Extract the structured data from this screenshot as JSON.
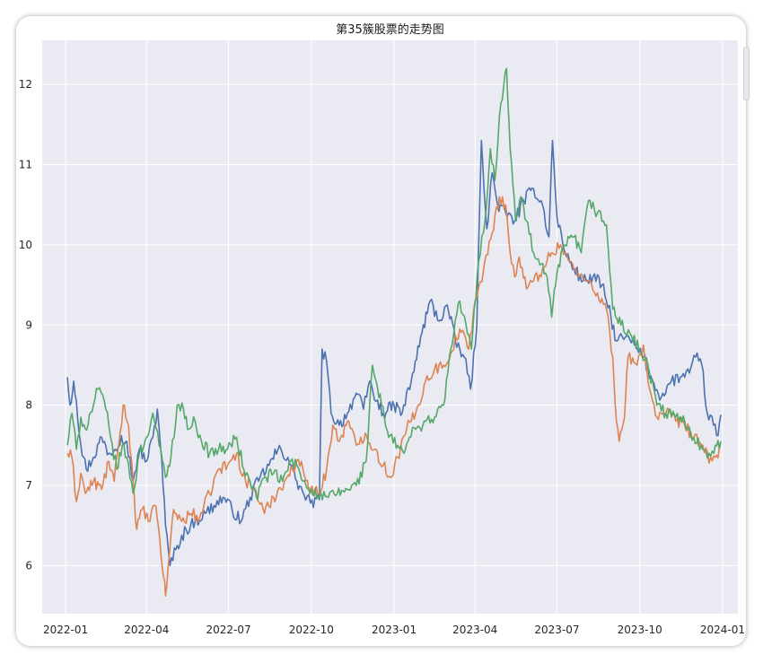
{
  "chart_data": {
    "type": "line",
    "title": "第35簇股票的走势图",
    "xlabel": "",
    "ylabel": "",
    "x_ticks": [
      "2022-01",
      "2022-04",
      "2022-07",
      "2022-10",
      "2023-01",
      "2023-04",
      "2023-07",
      "2023-10",
      "2024-01"
    ],
    "y_ticks": [
      "6",
      "7",
      "8",
      "9",
      "10",
      "11",
      "12"
    ],
    "xlim": [
      "2021-12-06",
      "2024-01-18"
    ],
    "ylim": [
      5.4,
      12.55
    ],
    "grid": true,
    "legend": "none",
    "colors": [
      "#4c72b0",
      "#dd8452",
      "#55a868"
    ],
    "series": [
      {
        "color": "#4c72b0",
        "points": [
          [
            "2022-01-03",
            8.35
          ],
          [
            "2022-01-06",
            8.0
          ],
          [
            "2022-01-10",
            8.3
          ],
          [
            "2022-01-13",
            8.05
          ],
          [
            "2022-01-18",
            7.5
          ],
          [
            "2022-01-24",
            7.2
          ],
          [
            "2022-02-01",
            7.35
          ],
          [
            "2022-02-10",
            7.6
          ],
          [
            "2022-02-18",
            7.4
          ],
          [
            "2022-02-25",
            7.45
          ],
          [
            "2022-03-04",
            7.62
          ],
          [
            "2022-03-10",
            7.55
          ],
          [
            "2022-03-17",
            7.05
          ],
          [
            "2022-03-24",
            7.45
          ],
          [
            "2022-04-01",
            7.3
          ],
          [
            "2022-04-08",
            7.6
          ],
          [
            "2022-04-13",
            7.95
          ],
          [
            "2022-04-18",
            7.3
          ],
          [
            "2022-04-22",
            6.5
          ],
          [
            "2022-04-27",
            6.0
          ],
          [
            "2022-05-05",
            6.25
          ],
          [
            "2022-05-15",
            6.45
          ],
          [
            "2022-05-25",
            6.55
          ],
          [
            "2022-06-05",
            6.65
          ],
          [
            "2022-06-15",
            6.75
          ],
          [
            "2022-06-25",
            6.85
          ],
          [
            "2022-07-05",
            6.7
          ],
          [
            "2022-07-15",
            6.55
          ],
          [
            "2022-07-25",
            6.85
          ],
          [
            "2022-08-05",
            7.1
          ],
          [
            "2022-08-15",
            7.25
          ],
          [
            "2022-08-25",
            7.45
          ],
          [
            "2022-09-05",
            7.35
          ],
          [
            "2022-09-15",
            7.05
          ],
          [
            "2022-09-23",
            6.88
          ],
          [
            "2022-09-30",
            6.78
          ],
          [
            "2022-10-10",
            6.82
          ],
          [
            "2022-10-13",
            8.7
          ],
          [
            "2022-10-18",
            8.55
          ],
          [
            "2022-10-23",
            7.9
          ],
          [
            "2022-11-01",
            7.75
          ],
          [
            "2022-11-10",
            7.9
          ],
          [
            "2022-11-20",
            8.15
          ],
          [
            "2022-11-28",
            7.95
          ],
          [
            "2022-12-05",
            8.3
          ],
          [
            "2022-12-12",
            8.05
          ],
          [
            "2022-12-20",
            7.9
          ],
          [
            "2023-01-01",
            8.0
          ],
          [
            "2023-01-10",
            7.9
          ],
          [
            "2023-01-20",
            8.3
          ],
          [
            "2023-02-01",
            8.9
          ],
          [
            "2023-02-10",
            9.3
          ],
          [
            "2023-02-20",
            9.05
          ],
          [
            "2023-03-01",
            9.25
          ],
          [
            "2023-03-10",
            8.8
          ],
          [
            "2023-03-20",
            8.6
          ],
          [
            "2023-03-27",
            8.2
          ],
          [
            "2023-04-03",
            9.0
          ],
          [
            "2023-04-08",
            11.3
          ],
          [
            "2023-04-14",
            10.2
          ],
          [
            "2023-04-20",
            10.9
          ],
          [
            "2023-04-26",
            10.5
          ],
          [
            "2023-05-05",
            10.4
          ],
          [
            "2023-05-15",
            10.3
          ],
          [
            "2023-05-25",
            10.55
          ],
          [
            "2023-06-05",
            10.7
          ],
          [
            "2023-06-15",
            10.5
          ],
          [
            "2023-06-22",
            10.1
          ],
          [
            "2023-06-26",
            11.3
          ],
          [
            "2023-07-01",
            10.35
          ],
          [
            "2023-07-10",
            9.9
          ],
          [
            "2023-07-20",
            9.7
          ],
          [
            "2023-07-30",
            9.55
          ],
          [
            "2023-08-10",
            9.6
          ],
          [
            "2023-08-20",
            9.5
          ],
          [
            "2023-08-30",
            9.1
          ],
          [
            "2023-09-05",
            8.8
          ],
          [
            "2023-09-15",
            8.85
          ],
          [
            "2023-09-25",
            8.75
          ],
          [
            "2023-10-05",
            8.6
          ],
          [
            "2023-10-15",
            8.3
          ],
          [
            "2023-10-25",
            8.1
          ],
          [
            "2023-11-05",
            8.3
          ],
          [
            "2023-11-15",
            8.35
          ],
          [
            "2023-11-25",
            8.4
          ],
          [
            "2023-12-02",
            8.6
          ],
          [
            "2023-12-09",
            8.5
          ],
          [
            "2023-12-15",
            7.9
          ],
          [
            "2023-12-22",
            7.75
          ],
          [
            "2023-12-27",
            7.62
          ],
          [
            "2023-12-30",
            7.88
          ]
        ]
      },
      {
        "color": "#dd8452",
        "points": [
          [
            "2022-01-03",
            7.4
          ],
          [
            "2022-01-08",
            7.35
          ],
          [
            "2022-01-13",
            6.8
          ],
          [
            "2022-01-18",
            7.15
          ],
          [
            "2022-01-23",
            6.9
          ],
          [
            "2022-02-01",
            7.05
          ],
          [
            "2022-02-10",
            6.95
          ],
          [
            "2022-02-18",
            7.3
          ],
          [
            "2022-02-24",
            7.05
          ],
          [
            "2022-03-01",
            7.5
          ],
          [
            "2022-03-06",
            8.0
          ],
          [
            "2022-03-12",
            7.75
          ],
          [
            "2022-03-17",
            7.05
          ],
          [
            "2022-03-21",
            6.45
          ],
          [
            "2022-03-27",
            6.7
          ],
          [
            "2022-04-03",
            6.55
          ],
          [
            "2022-04-10",
            6.75
          ],
          [
            "2022-04-14",
            6.5
          ],
          [
            "2022-04-20",
            5.85
          ],
          [
            "2022-04-22",
            5.62
          ],
          [
            "2022-04-25",
            6.0
          ],
          [
            "2022-05-01",
            6.7
          ],
          [
            "2022-05-10",
            6.55
          ],
          [
            "2022-05-20",
            6.65
          ],
          [
            "2022-05-30",
            6.6
          ],
          [
            "2022-06-10",
            6.9
          ],
          [
            "2022-06-20",
            7.2
          ],
          [
            "2022-06-30",
            7.25
          ],
          [
            "2022-07-10",
            7.4
          ],
          [
            "2022-07-20",
            7.05
          ],
          [
            "2022-07-30",
            6.95
          ],
          [
            "2022-08-10",
            6.65
          ],
          [
            "2022-08-20",
            6.85
          ],
          [
            "2022-09-01",
            7.05
          ],
          [
            "2022-09-10",
            7.2
          ],
          [
            "2022-09-20",
            7.3
          ],
          [
            "2022-09-30",
            6.95
          ],
          [
            "2022-10-10",
            6.9
          ],
          [
            "2022-10-18",
            7.2
          ],
          [
            "2022-10-25",
            7.75
          ],
          [
            "2022-11-01",
            7.55
          ],
          [
            "2022-11-10",
            7.8
          ],
          [
            "2022-11-20",
            7.5
          ],
          [
            "2022-11-30",
            7.65
          ],
          [
            "2022-12-10",
            7.45
          ],
          [
            "2022-12-20",
            7.25
          ],
          [
            "2022-12-28",
            7.1
          ],
          [
            "2023-01-05",
            7.35
          ],
          [
            "2023-01-15",
            7.7
          ],
          [
            "2023-01-25",
            7.9
          ],
          [
            "2023-02-05",
            8.3
          ],
          [
            "2023-02-15",
            8.45
          ],
          [
            "2023-02-25",
            8.5
          ],
          [
            "2023-03-05",
            8.65
          ],
          [
            "2023-03-15",
            8.95
          ],
          [
            "2023-03-25",
            8.7
          ],
          [
            "2023-04-01",
            9.3
          ],
          [
            "2023-04-10",
            9.65
          ],
          [
            "2023-04-20",
            10.15
          ],
          [
            "2023-04-28",
            10.6
          ],
          [
            "2023-05-05",
            10.5
          ],
          [
            "2023-05-10",
            9.9
          ],
          [
            "2023-05-15",
            9.6
          ],
          [
            "2023-05-20",
            9.85
          ],
          [
            "2023-05-28",
            9.45
          ],
          [
            "2023-06-05",
            9.55
          ],
          [
            "2023-06-15",
            9.7
          ],
          [
            "2023-06-25",
            9.9
          ],
          [
            "2023-07-05",
            10.0
          ],
          [
            "2023-07-15",
            9.8
          ],
          [
            "2023-07-25",
            9.6
          ],
          [
            "2023-08-05",
            9.55
          ],
          [
            "2023-08-15",
            9.4
          ],
          [
            "2023-08-25",
            9.2
          ],
          [
            "2023-09-01",
            8.6
          ],
          [
            "2023-09-05",
            7.8
          ],
          [
            "2023-09-08",
            7.55
          ],
          [
            "2023-09-14",
            7.85
          ],
          [
            "2023-09-18",
            8.6
          ],
          [
            "2023-09-28",
            8.5
          ],
          [
            "2023-10-05",
            8.75
          ],
          [
            "2023-10-12",
            8.2
          ],
          [
            "2023-10-20",
            7.85
          ],
          [
            "2023-10-30",
            7.9
          ],
          [
            "2023-11-10",
            7.8
          ],
          [
            "2023-11-20",
            7.75
          ],
          [
            "2023-11-30",
            7.6
          ],
          [
            "2023-12-10",
            7.5
          ],
          [
            "2023-12-17",
            7.28
          ],
          [
            "2023-12-24",
            7.35
          ],
          [
            "2023-12-30",
            7.48
          ]
        ]
      },
      {
        "color": "#55a868",
        "points": [
          [
            "2022-01-03",
            7.5
          ],
          [
            "2022-01-08",
            7.9
          ],
          [
            "2022-01-13",
            7.45
          ],
          [
            "2022-01-18",
            7.85
          ],
          [
            "2022-01-23",
            7.7
          ],
          [
            "2022-02-01",
            8.0
          ],
          [
            "2022-02-06",
            8.2
          ],
          [
            "2022-02-13",
            8.05
          ],
          [
            "2022-02-20",
            7.6
          ],
          [
            "2022-02-27",
            7.2
          ],
          [
            "2022-03-05",
            7.5
          ],
          [
            "2022-03-10",
            7.35
          ],
          [
            "2022-03-17",
            6.9
          ],
          [
            "2022-03-24",
            7.4
          ],
          [
            "2022-04-01",
            7.6
          ],
          [
            "2022-04-08",
            7.9
          ],
          [
            "2022-04-15",
            7.5
          ],
          [
            "2022-04-22",
            7.1
          ],
          [
            "2022-04-28",
            7.35
          ],
          [
            "2022-05-05",
            8.0
          ],
          [
            "2022-05-12",
            7.95
          ],
          [
            "2022-05-18",
            7.7
          ],
          [
            "2022-05-25",
            7.8
          ],
          [
            "2022-06-01",
            7.55
          ],
          [
            "2022-06-10",
            7.4
          ],
          [
            "2022-06-20",
            7.45
          ],
          [
            "2022-06-30",
            7.45
          ],
          [
            "2022-07-10",
            7.6
          ],
          [
            "2022-07-18",
            7.2
          ],
          [
            "2022-07-25",
            7.05
          ],
          [
            "2022-08-01",
            6.85
          ],
          [
            "2022-08-10",
            7.1
          ],
          [
            "2022-08-20",
            7.15
          ],
          [
            "2022-08-30",
            7.05
          ],
          [
            "2022-09-08",
            7.3
          ],
          [
            "2022-09-15",
            7.25
          ],
          [
            "2022-09-22",
            7.05
          ],
          [
            "2022-10-01",
            6.95
          ],
          [
            "2022-10-10",
            6.85
          ],
          [
            "2022-10-20",
            6.85
          ],
          [
            "2022-10-30",
            6.9
          ],
          [
            "2022-11-10",
            6.95
          ],
          [
            "2022-11-20",
            7.0
          ],
          [
            "2022-12-01",
            7.3
          ],
          [
            "2022-12-08",
            8.5
          ],
          [
            "2022-12-12",
            8.3
          ],
          [
            "2022-12-18",
            8.0
          ],
          [
            "2022-12-26",
            7.6
          ],
          [
            "2023-01-05",
            7.5
          ],
          [
            "2023-01-12",
            7.4
          ],
          [
            "2023-01-18",
            7.6
          ],
          [
            "2023-01-25",
            7.7
          ],
          [
            "2023-02-05",
            7.8
          ],
          [
            "2023-02-15",
            7.85
          ],
          [
            "2023-02-25",
            8.0
          ],
          [
            "2023-03-05",
            8.7
          ],
          [
            "2023-03-15",
            9.3
          ],
          [
            "2023-03-22",
            9.0
          ],
          [
            "2023-03-28",
            8.7
          ],
          [
            "2023-04-05",
            9.8
          ],
          [
            "2023-04-12",
            10.3
          ],
          [
            "2023-04-18",
            11.2
          ],
          [
            "2023-04-23",
            10.8
          ],
          [
            "2023-04-28",
            11.6
          ],
          [
            "2023-05-03",
            12.0
          ],
          [
            "2023-05-06",
            12.2
          ],
          [
            "2023-05-10",
            11.2
          ],
          [
            "2023-05-16",
            10.3
          ],
          [
            "2023-05-22",
            10.6
          ],
          [
            "2023-05-28",
            10.3
          ],
          [
            "2023-06-05",
            9.9
          ],
          [
            "2023-06-12",
            9.75
          ],
          [
            "2023-06-20",
            9.6
          ],
          [
            "2023-06-25",
            9.1
          ],
          [
            "2023-07-01",
            9.65
          ],
          [
            "2023-07-10",
            10.0
          ],
          [
            "2023-07-20",
            10.1
          ],
          [
            "2023-07-28",
            9.9
          ],
          [
            "2023-08-05",
            10.55
          ],
          [
            "2023-08-15",
            10.4
          ],
          [
            "2023-08-25",
            10.25
          ],
          [
            "2023-09-01",
            9.2
          ],
          [
            "2023-09-10",
            9.0
          ],
          [
            "2023-09-20",
            8.9
          ],
          [
            "2023-09-30",
            8.7
          ],
          [
            "2023-10-10",
            8.5
          ],
          [
            "2023-10-20",
            8.0
          ],
          [
            "2023-10-30",
            7.9
          ],
          [
            "2023-11-10",
            7.85
          ],
          [
            "2023-11-20",
            7.8
          ],
          [
            "2023-11-30",
            7.6
          ],
          [
            "2023-12-10",
            7.45
          ],
          [
            "2023-12-17",
            7.4
          ],
          [
            "2023-12-24",
            7.5
          ],
          [
            "2023-12-30",
            7.55
          ]
        ]
      }
    ]
  }
}
